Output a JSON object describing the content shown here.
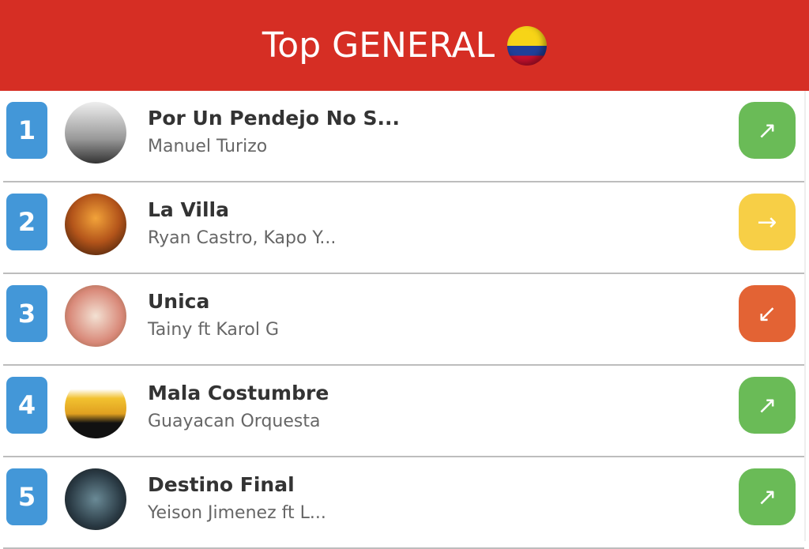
{
  "header": {
    "title": "Top GENERAL",
    "flag_icon": "colombia-flag-icon"
  },
  "colors": {
    "header": "#d62e24",
    "rank": "#4397d8",
    "up": "#6abb57",
    "same": "#f7cf46",
    "down": "#e36334"
  },
  "songs": [
    {
      "rank": "1",
      "title": "Por Un Pendejo No S...",
      "artist": "Manuel Turizo",
      "trend": "up",
      "arrow": "↗",
      "cover": "linear-gradient(#eee,#999 60%,#333)",
      "color": "#6abb57"
    },
    {
      "rank": "2",
      "title": "La Villa",
      "artist": "Ryan Castro, Kapo Y...",
      "trend": "same",
      "arrow": "→",
      "cover": "radial-gradient(circle at 50% 40%,#f2a33a,#b3541a 50%,#2a1408)",
      "color": "#f7cf46"
    },
    {
      "rank": "3",
      "title": "Unica",
      "artist": "Tainy ft Karol G",
      "trend": "down",
      "arrow": "↙",
      "cover": "radial-gradient(circle,#f3e1d3,#d98a7a 60%,#8a5a3a)",
      "color": "#e36334"
    },
    {
      "rank": "4",
      "title": "Mala Costumbre",
      "artist": "Guayacan Orquesta",
      "trend": "up",
      "arrow": "↗",
      "cover": "linear-gradient(#fff 20%,#f2c230 35%,#e0a020 60%,#111 75%)",
      "color": "#6abb57"
    },
    {
      "rank": "5",
      "title": "Destino Final",
      "artist": "Yeison Jimenez ft L...",
      "trend": "up",
      "arrow": "↗",
      "cover": "radial-gradient(circle,#6a8a96,#2a3a44 60%,#111)",
      "color": "#6abb57"
    }
  ]
}
